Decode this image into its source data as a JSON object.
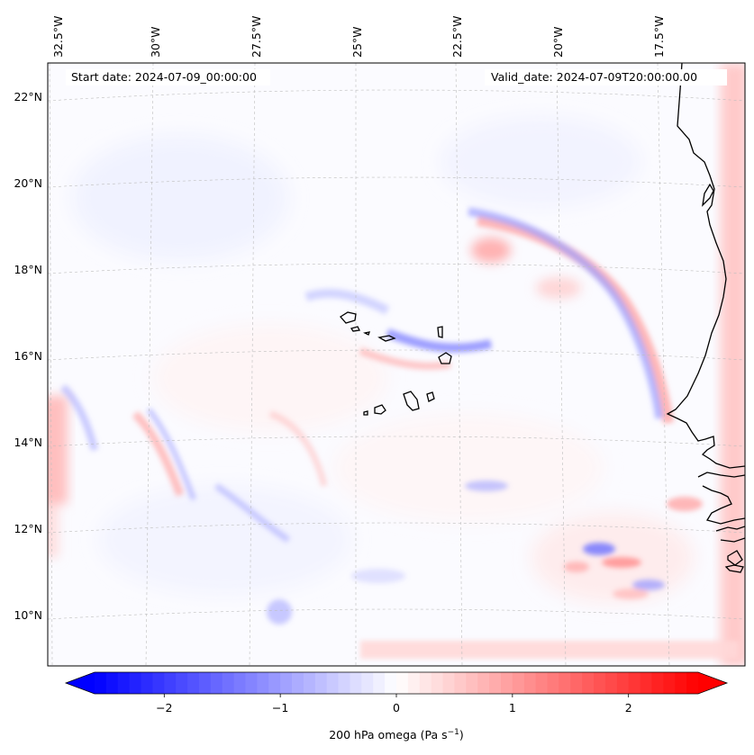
{
  "header": {
    "start_date": "Start date: 2024-07-09_00:00:00",
    "valid_date": "Valid_date: 2024-07-09T20:00:00.00"
  },
  "lon_labels": [
    "32.5°W",
    "30°W",
    "27.5°W",
    "25°W",
    "22.5°W",
    "20°W",
    "17.5°W"
  ],
  "lat_labels": [
    "22°N",
    "20°N",
    "18°N",
    "16°N",
    "14°N",
    "12°N",
    "10°N"
  ],
  "colorbar": {
    "label_text": "200 hPa omega (Pa s",
    "label_exp": "−1",
    "label_close": ")",
    "ticks": [
      "−2",
      "−1",
      "0",
      "1",
      "2"
    ],
    "vmin": -2.6,
    "vmax": 2.6,
    "tick_values": [
      -2,
      -1,
      0,
      1,
      2
    ],
    "levels": 52
  },
  "colors": {
    "negative": "#0000ff",
    "positive": "#ff0000",
    "neutral": "#ffffff",
    "coastline": "#000000",
    "gridline": "#bdbdbd"
  }
}
